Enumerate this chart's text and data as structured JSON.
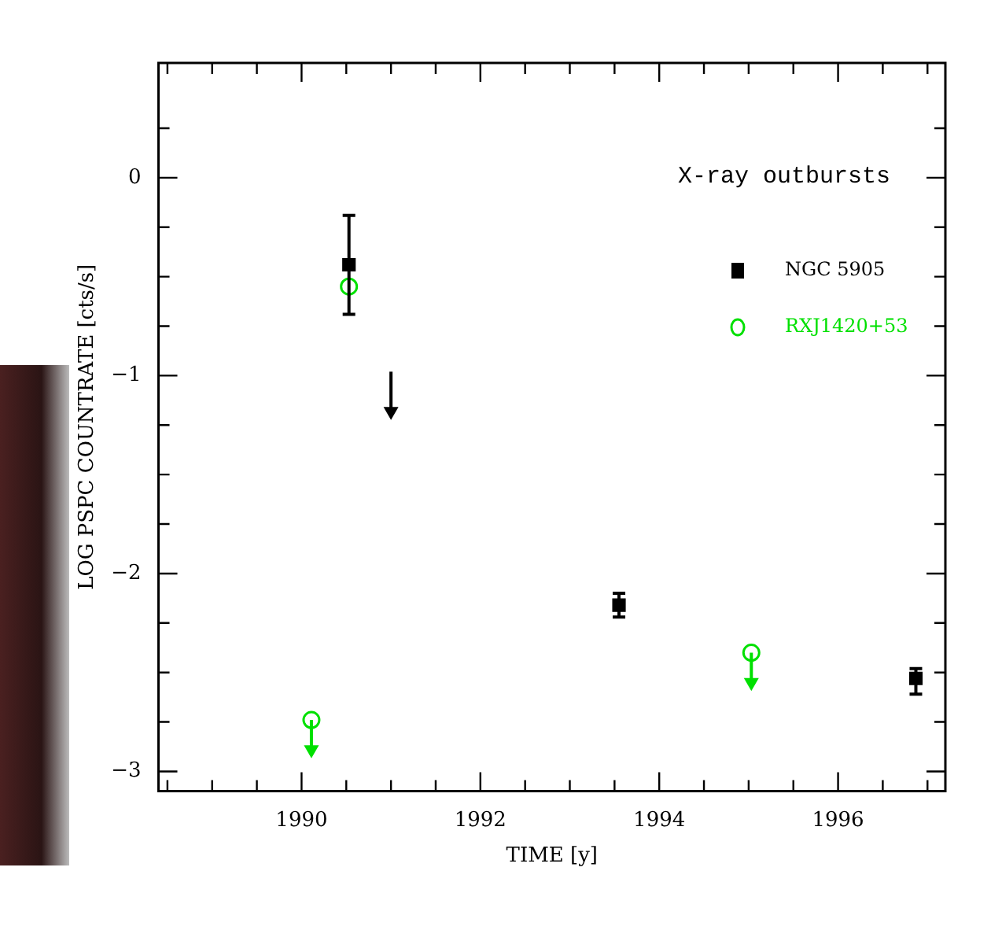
{
  "chart_data": {
    "type": "scatter",
    "xlabel": "TIME [y]",
    "ylabel": "LOG PSPC COUNTRATE [cts/s]",
    "legend_title": "X-ray outbursts",
    "xlim": [
      1988.4,
      1997.2
    ],
    "ylim": [
      -3.1,
      0.58
    ],
    "xticks": [
      {
        "value": 1988.5,
        "label": null
      },
      {
        "value": 1989,
        "label": null
      },
      {
        "value": 1989.5,
        "label": null
      },
      1990,
      {
        "value": 1990.5,
        "label": null
      },
      {
        "value": 1991,
        "label": null
      },
      {
        "value": 1991.5,
        "label": null
      },
      1992,
      {
        "value": 1992.5,
        "label": null
      },
      {
        "value": 1993,
        "label": null
      },
      {
        "value": 1993.5,
        "label": null
      },
      1994,
      {
        "value": 1994.5,
        "label": null
      },
      {
        "value": 1995,
        "label": null
      },
      {
        "value": 1995.5,
        "label": null
      },
      1996,
      {
        "value": 1996.5,
        "label": null
      },
      {
        "value": 1997,
        "label": null
      }
    ],
    "yticks": [
      -3,
      {
        "value": -2.75,
        "label": null
      },
      {
        "value": -2.5,
        "label": null
      },
      {
        "value": -2.25,
        "label": null
      },
      -2,
      {
        "value": -1.75,
        "label": null
      },
      {
        "value": -1.5,
        "label": null
      },
      {
        "value": -1.25,
        "label": null
      },
      -1,
      {
        "value": -0.75,
        "label": null
      },
      {
        "value": -0.5,
        "label": null
      },
      {
        "value": -0.25,
        "label": null
      },
      0,
      {
        "value": 0.25,
        "label": null
      }
    ],
    "legend": "top right",
    "grid": false,
    "series": [
      {
        "name": "NGC 5905",
        "color": "#000000",
        "marker": "square",
        "x": [
          1990.53,
          1993.55,
          1996.87
        ],
        "values": [
          -0.44,
          -2.16,
          -2.53
        ],
        "errors": [
          [
            -0.69,
            -0.19
          ],
          [
            -2.22,
            -2.1
          ],
          [
            -2.61,
            -2.48
          ]
        ]
      },
      {
        "name": "RXJ1420+53",
        "color": "#00e000",
        "marker": "circle",
        "x": [
          1990.11,
          1990.53,
          1995.03
        ],
        "values": [
          -2.74,
          -0.55,
          -2.4
        ],
        "errors": [
          [
            -2.91,
            -2.74
          ],
          null,
          [
            -2.57,
            -2.4
          ]
        ]
      },
      {
        "color": "#000000",
        "marker": "triangle",
        "x": [
          1991.0
        ],
        "values": [
          -1.18
        ],
        "errors": [
          [
            -1.18,
            -0.98
          ]
        ]
      },
      {
        "color": "#00e000",
        "marker": "triangle",
        "x": [
          1990.11,
          1995.03
        ],
        "values": [
          -2.89,
          -2.55
        ]
      }
    ]
  }
}
